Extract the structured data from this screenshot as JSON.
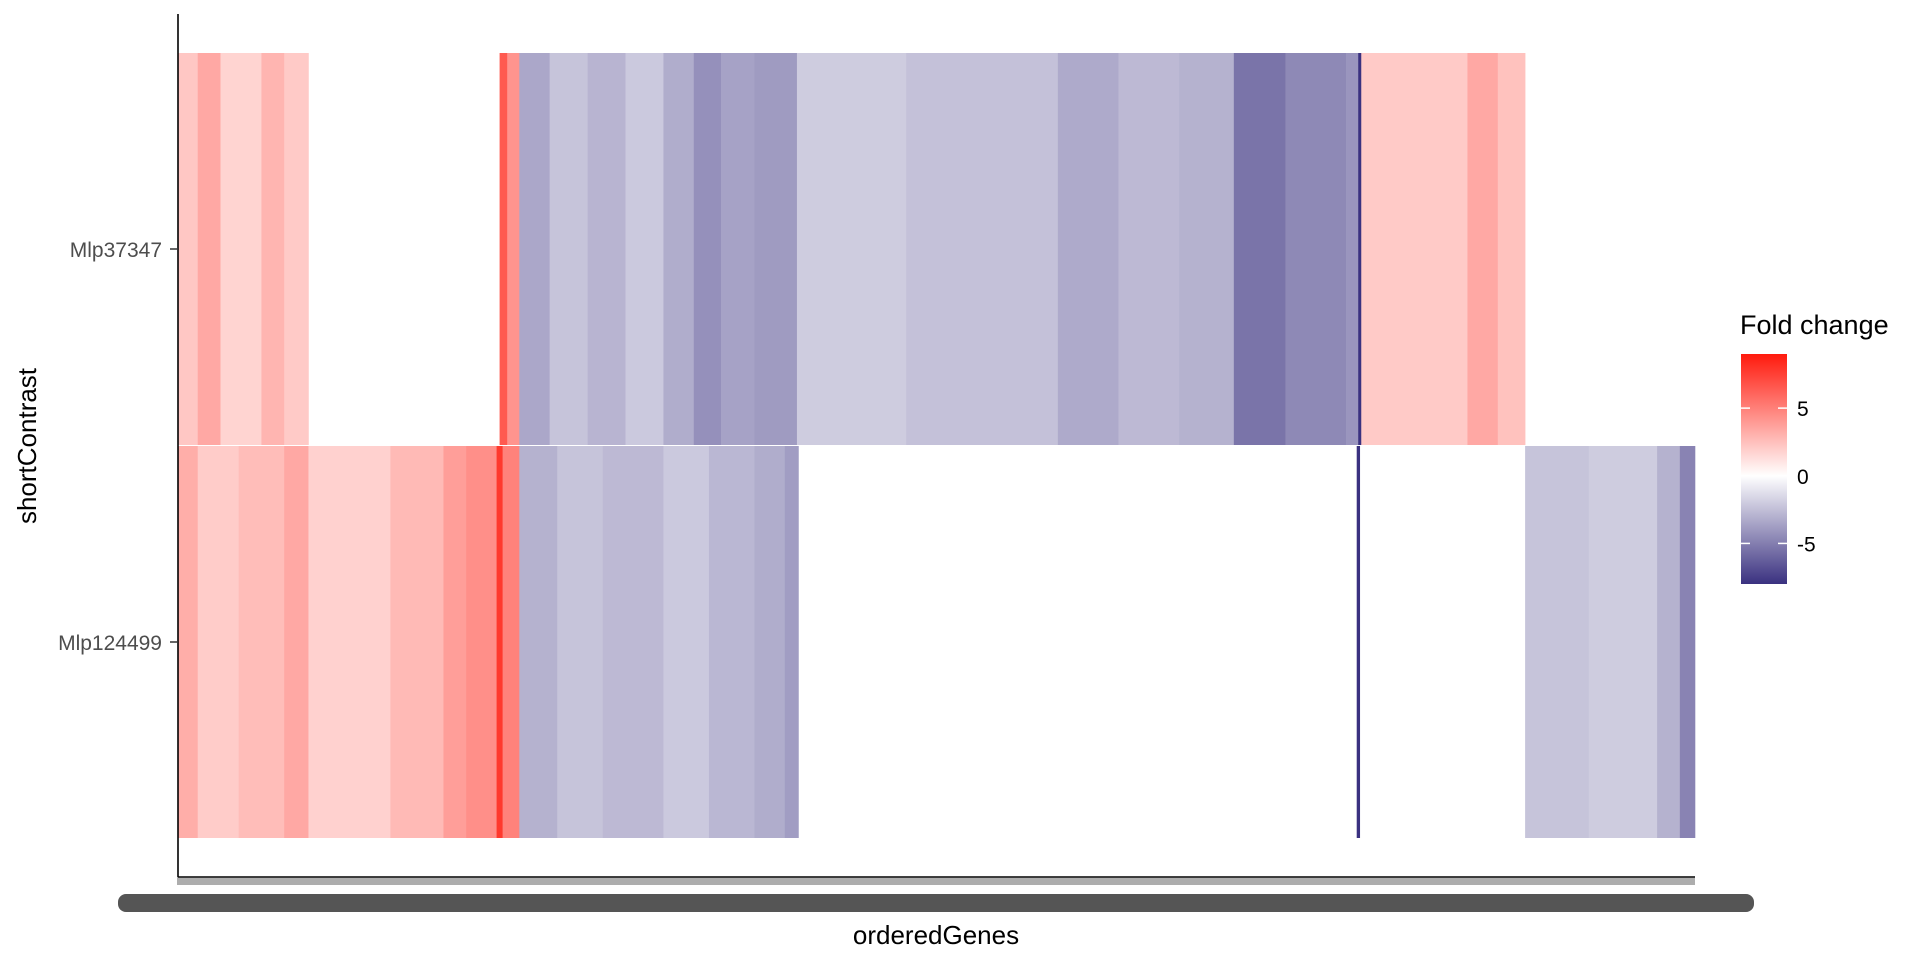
{
  "chart_data": {
    "type": "heatmap",
    "title": "",
    "xlabel": "orderedGenes",
    "ylabel": "shortContrast",
    "y_categories": [
      "Mlp37347",
      "Mlp124499"
    ],
    "x_tick_labels": "overplotted, illegible",
    "legend": {
      "title": "Fold change",
      "placement": "right",
      "ticks": [
        5,
        0,
        -5
      ],
      "tick_labels": [
        "5",
        "0",
        "-5"
      ],
      "range": [
        -8,
        9
      ],
      "colors": {
        "high": "#ff1a0d",
        "mid": "#ffffff",
        "low": "#3a3180"
      }
    },
    "grid": false,
    "approx_gene_count": 1000,
    "rows": [
      {
        "contrast": "Mlp37347",
        "segments": [
          {
            "from": 0,
            "to": 13,
            "value": 2.2
          },
          {
            "from": 13,
            "to": 28,
            "value": 3.4
          },
          {
            "from": 28,
            "to": 55,
            "value": 1.7
          },
          {
            "from": 55,
            "to": 70,
            "value": 2.9
          },
          {
            "from": 70,
            "to": 86,
            "value": 2.1
          },
          {
            "from": 86,
            "to": 212,
            "value": null
          },
          {
            "from": 212,
            "to": 217,
            "value": 6.5
          },
          {
            "from": 217,
            "to": 225,
            "value": 4.2
          },
          {
            "from": 225,
            "to": 245,
            "value": -3.4
          },
          {
            "from": 245,
            "to": 270,
            "value": -2.3
          },
          {
            "from": 270,
            "to": 295,
            "value": -2.9
          },
          {
            "from": 295,
            "to": 320,
            "value": -2.1
          },
          {
            "from": 320,
            "to": 340,
            "value": -3.2
          },
          {
            "from": 340,
            "to": 358,
            "value": -4.3
          },
          {
            "from": 358,
            "to": 380,
            "value": -3.6
          },
          {
            "from": 380,
            "to": 408,
            "value": -3.9
          },
          {
            "from": 408,
            "to": 480,
            "value": -2.0
          },
          {
            "from": 480,
            "to": 580,
            "value": -2.4
          },
          {
            "from": 580,
            "to": 620,
            "value": -3.3
          },
          {
            "from": 620,
            "to": 660,
            "value": -2.7
          },
          {
            "from": 660,
            "to": 696,
            "value": -3.0
          },
          {
            "from": 696,
            "to": 730,
            "value": -5.4
          },
          {
            "from": 730,
            "to": 770,
            "value": -4.6
          },
          {
            "from": 770,
            "to": 778,
            "value": -4.1
          },
          {
            "from": 778,
            "to": 780,
            "value": -8.0
          },
          {
            "from": 780,
            "to": 850,
            "value": 2.1
          },
          {
            "from": 850,
            "to": 870,
            "value": 3.4
          },
          {
            "from": 870,
            "to": 888,
            "value": 2.4
          },
          {
            "from": 888,
            "to": 1000,
            "value": null
          }
        ]
      },
      {
        "contrast": "Mlp124499",
        "segments": [
          {
            "from": 0,
            "to": 13,
            "value": 3.2
          },
          {
            "from": 13,
            "to": 40,
            "value": 2.0
          },
          {
            "from": 40,
            "to": 70,
            "value": 2.6
          },
          {
            "from": 70,
            "to": 86,
            "value": 3.4
          },
          {
            "from": 86,
            "to": 140,
            "value": 1.8
          },
          {
            "from": 140,
            "to": 175,
            "value": 2.7
          },
          {
            "from": 175,
            "to": 190,
            "value": 3.8
          },
          {
            "from": 190,
            "to": 210,
            "value": 4.4
          },
          {
            "from": 210,
            "to": 214,
            "value": 7.8
          },
          {
            "from": 214,
            "to": 225,
            "value": 4.9
          },
          {
            "from": 225,
            "to": 250,
            "value": -3.0
          },
          {
            "from": 250,
            "to": 280,
            "value": -2.3
          },
          {
            "from": 280,
            "to": 320,
            "value": -2.7
          },
          {
            "from": 320,
            "to": 350,
            "value": -2.1
          },
          {
            "from": 350,
            "to": 380,
            "value": -2.8
          },
          {
            "from": 380,
            "to": 400,
            "value": -3.2
          },
          {
            "from": 400,
            "to": 409,
            "value": -3.8
          },
          {
            "from": 409,
            "to": 777,
            "value": null
          },
          {
            "from": 777,
            "to": 779,
            "value": -8.0
          },
          {
            "from": 779,
            "to": 888,
            "value": null
          },
          {
            "from": 888,
            "to": 930,
            "value": -2.3
          },
          {
            "from": 930,
            "to": 975,
            "value": -2.0
          },
          {
            "from": 975,
            "to": 990,
            "value": -3.0
          },
          {
            "from": 990,
            "to": 1000,
            "value": -4.8
          }
        ]
      }
    ]
  }
}
